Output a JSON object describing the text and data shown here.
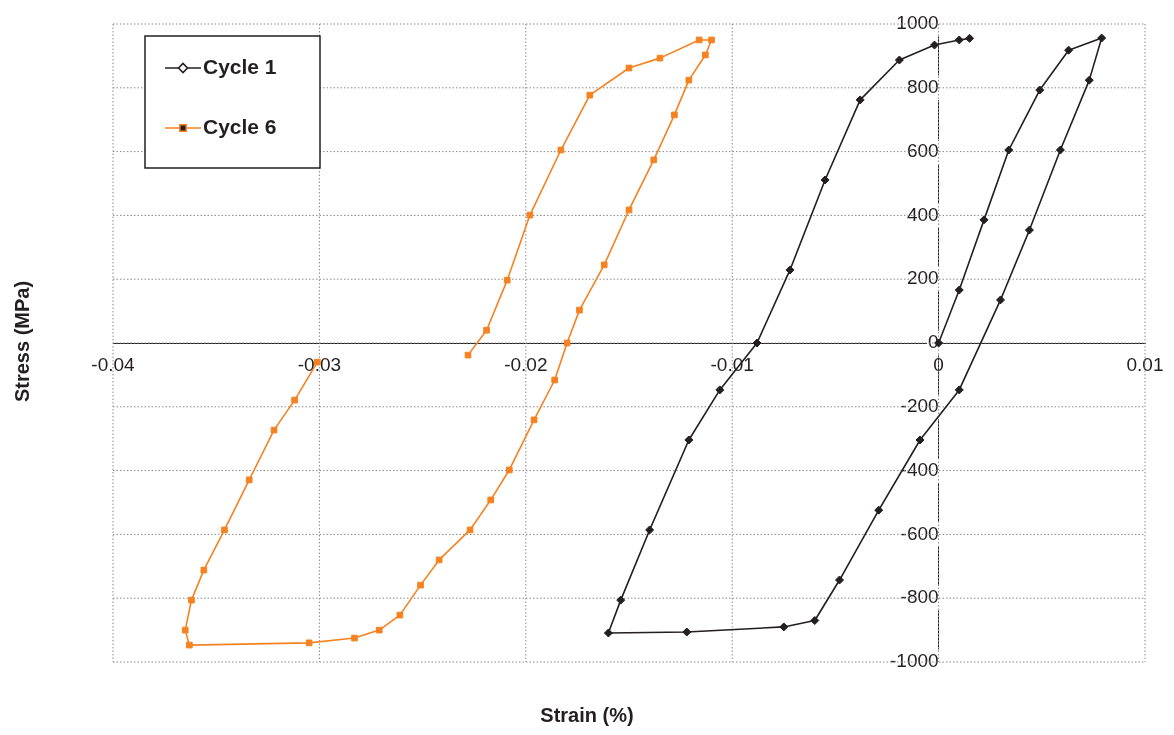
{
  "chart_data": {
    "type": "line",
    "xlabel": "Strain (%)",
    "ylabel": "Stress (MPa)",
    "xlim": [
      -0.04,
      0.01
    ],
    "xticks": [
      -0.04,
      -0.03,
      -0.02,
      -0.01,
      0,
      0.01
    ],
    "ylim": [
      -1000,
      1000
    ],
    "yticks": [
      -1000,
      -800,
      -600,
      -400,
      -200,
      0,
      200,
      400,
      600,
      800,
      1000
    ],
    "grid": true,
    "legend": "top left",
    "series": [
      {
        "name": "Cycle 1",
        "color": "#231f20",
        "marker": "diamond",
        "x": [
          0,
          0.001,
          0.0022,
          0.0034,
          0.0049,
          0.0063,
          0.0079,
          0.0073,
          0.0059,
          0.0044,
          0.003,
          0.001,
          -0.0009,
          -0.0029,
          -0.0048,
          -0.006,
          -0.0075,
          -0.0122,
          -0.016,
          -0.0154,
          -0.014,
          -0.0121,
          -0.0106,
          -0.0088,
          -0.0072,
          -0.0055,
          -0.0038,
          -0.0019,
          -0.0002,
          0.001,
          0.0015
        ],
        "values": [
          0,
          166,
          386,
          605,
          793,
          918,
          956,
          824,
          605,
          354,
          135,
          -147,
          -304,
          -524,
          -743,
          -870,
          -890,
          -906,
          -909,
          -806,
          -586,
          -304,
          -147,
          0,
          229,
          511,
          762,
          887,
          934,
          950,
          955
        ]
      },
      {
        "name": "Cycle 6",
        "color": "#f58220",
        "marker": "square",
        "x": [
          -0.0228,
          -0.0219,
          -0.0209,
          -0.0198,
          -0.0183,
          -0.0169,
          -0.015,
          -0.0135,
          -0.0116,
          -0.011,
          -0.0113,
          -0.0121,
          -0.0128,
          -0.0138,
          -0.015,
          -0.0162,
          -0.0174,
          -0.018,
          -0.0186,
          -0.0196,
          -0.0208,
          -0.0217,
          -0.0227,
          -0.0242,
          -0.0251,
          -0.0261,
          -0.0271,
          -0.0283,
          -0.0305,
          -0.0363,
          -0.0365,
          -0.0362,
          -0.0356,
          -0.0346,
          -0.0334,
          -0.0322,
          -0.0312,
          -0.0301
        ],
        "values": [
          -38,
          40,
          197,
          401,
          605,
          777,
          862,
          893,
          950,
          950,
          903,
          824,
          715,
          574,
          417,
          245,
          103,
          0,
          -116,
          -241,
          -398,
          -492,
          -586,
          -680,
          -759,
          -853,
          -900,
          -925,
          -940,
          -947,
          -900,
          -806,
          -712,
          -586,
          -429,
          -273,
          -179,
          -60
        ]
      }
    ]
  }
}
